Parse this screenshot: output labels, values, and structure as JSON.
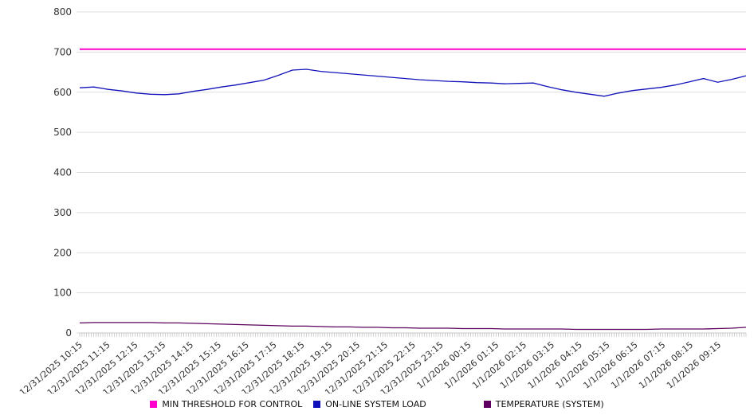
{
  "chart_data": {
    "type": "line",
    "title": "",
    "xlabel": "",
    "ylabel": "",
    "ylim": [
      0,
      800
    ],
    "y_ticks": [
      0,
      100,
      200,
      300,
      400,
      500,
      600,
      700,
      800
    ],
    "grid": "horizontal",
    "grid_color": "#dddddd",
    "legend_position": "bottom",
    "x_minor_tick_count": 288,
    "x_labels": [
      "12/31/2025 10:15",
      "12/31/2025 11:15",
      "12/31/2025 12:15",
      "12/31/2025 13:15",
      "12/31/2025 14:15",
      "12/31/2025 15:15",
      "12/31/2025 16:15",
      "12/31/2025 17:15",
      "12/31/2025 18:15",
      "12/31/2025 19:15",
      "12/31/2025 20:15",
      "12/31/2025 21:15",
      "12/31/2025 22:15",
      "12/31/2025 23:15",
      "1/1/2026 00:15",
      "1/1/2026 01:15",
      "1/1/2026 02:15",
      "1/1/2026 03:15",
      "1/1/2026 04:15",
      "1/1/2026 05:15",
      "1/1/2026 06:15",
      "1/1/2026 07:15",
      "1/1/2026 08:15",
      "1/1/2026 09:15"
    ],
    "series": [
      {
        "name": "MIN THRESHOLD FOR CONTROL",
        "color": "#ff00cc",
        "stroke_width": 2,
        "values": [
          707,
          707
        ]
      },
      {
        "name": "ON-LINE SYSTEM LOAD",
        "color": "#1111bb",
        "stroke_width": 1.3,
        "values": [
          611,
          613,
          607,
          603,
          598,
          595,
          594,
          596,
          602,
          607,
          613,
          618,
          624,
          630,
          642,
          655,
          657,
          652,
          649,
          646,
          643,
          640,
          637,
          634,
          631,
          629,
          627,
          626,
          624,
          623,
          621,
          622,
          623,
          614,
          606,
          600,
          595,
          590,
          598,
          604,
          608,
          612,
          618,
          626,
          634,
          625,
          632,
          641
        ]
      },
      {
        "name": "TEMPERATURE (SYSTEM)",
        "color": "#5e005e",
        "stroke_width": 1.3,
        "values": [
          25,
          26,
          26,
          26,
          26,
          26,
          25,
          25,
          24,
          23,
          22,
          21,
          20,
          19,
          18,
          17,
          17,
          16,
          15,
          15,
          14,
          14,
          13,
          13,
          12,
          12,
          12,
          11,
          11,
          11,
          10,
          10,
          10,
          10,
          10,
          9,
          9,
          9,
          9,
          9,
          9,
          10,
          10,
          10,
          10,
          11,
          12,
          14
        ]
      }
    ]
  }
}
